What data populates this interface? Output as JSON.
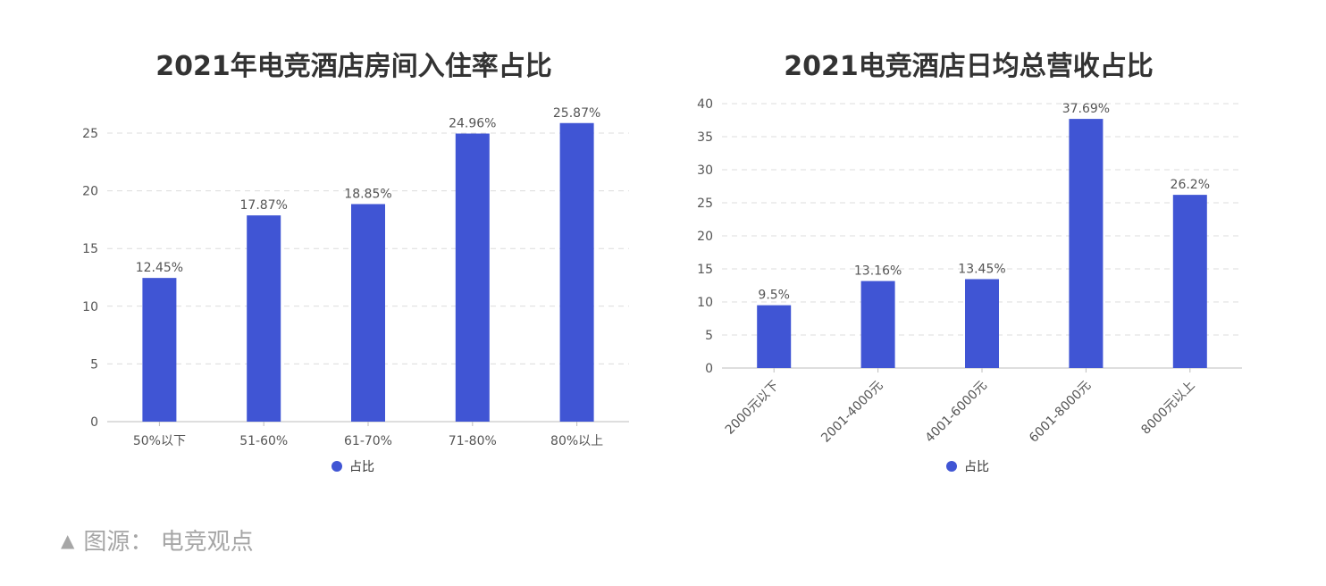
{
  "caption": {
    "marker": "▲",
    "text": "图源： 电竞观点"
  },
  "chart_data": [
    {
      "type": "bar",
      "title": "2021年电竞酒店房间入住率占比",
      "categories": [
        "50%以下",
        "51-60%",
        "61-70%",
        "71-80%",
        "80%以上"
      ],
      "series": [
        {
          "name": "占比",
          "values": [
            12.45,
            17.87,
            18.85,
            24.96,
            25.87
          ],
          "labels": [
            "12.45%",
            "17.87%",
            "18.85%",
            "24.96%",
            "25.87%"
          ]
        }
      ],
      "ylim": [
        0,
        25
      ],
      "yticks": [
        0,
        5,
        10,
        15,
        20,
        25
      ],
      "xlabel": "",
      "ylabel": "",
      "grid": true,
      "legend": "bottom",
      "x_tick_rotation": 0,
      "bar_color": "#4055d4"
    },
    {
      "type": "bar",
      "title": "2021电竞酒店日均总营收占比",
      "categories": [
        "2000元以下",
        "2001-4000元",
        "4001-6000元",
        "6001-8000元",
        "8000元以上"
      ],
      "series": [
        {
          "name": "占比",
          "values": [
            9.5,
            13.16,
            13.45,
            37.69,
            26.2
          ],
          "labels": [
            "9.5%",
            "13.16%",
            "13.45%",
            "37.69%",
            "26.2%"
          ]
        }
      ],
      "ylim": [
        0,
        40
      ],
      "yticks": [
        0,
        5,
        10,
        15,
        20,
        25,
        30,
        35,
        40
      ],
      "xlabel": "",
      "ylabel": "",
      "grid": true,
      "legend": "bottom",
      "x_tick_rotation": -45,
      "bar_color": "#4055d4"
    }
  ]
}
